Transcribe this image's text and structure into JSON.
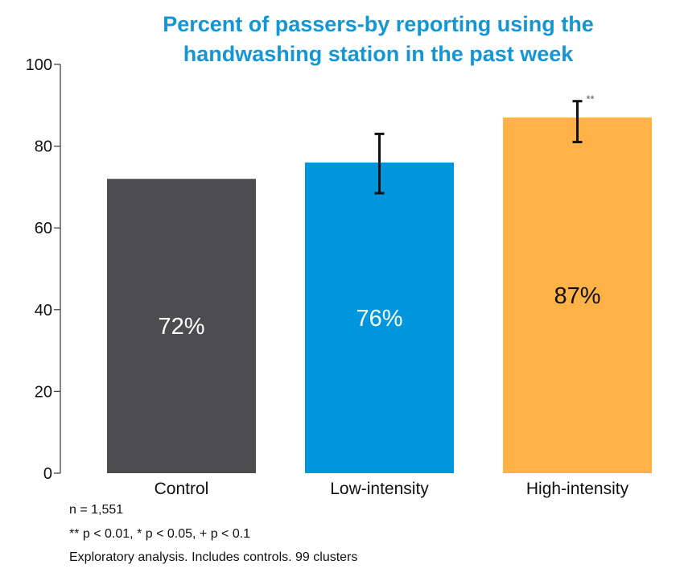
{
  "chart_data": {
    "type": "bar",
    "title_lines": [
      "Percent of passers-by reporting using the",
      "handwashing station in the past week"
    ],
    "categories": [
      "Control",
      "Low-intensity",
      "High-intensity"
    ],
    "values": [
      72,
      76,
      87
    ],
    "value_labels": [
      "72%",
      "76%",
      "87%"
    ],
    "error_bars": [
      null,
      [
        68.5,
        83
      ],
      [
        81,
        91
      ]
    ],
    "significance": [
      null,
      null,
      "**"
    ],
    "colors": [
      "#4d4d4f",
      "#0096dd",
      "#ffb347"
    ],
    "label_colors": [
      "#ffffff",
      "#ffffff",
      "#111111"
    ],
    "ylim": [
      0,
      100
    ],
    "yticks": [
      0,
      20,
      40,
      60,
      80,
      100
    ],
    "xlabel": "",
    "ylabel": "",
    "grid": false,
    "legend": "none"
  },
  "footnotes": [
    "n = 1,551",
    "** p < 0.01, * p < 0.05, + p < 0.1",
    "Exploratory analysis. Includes controls. 99 clusters"
  ]
}
